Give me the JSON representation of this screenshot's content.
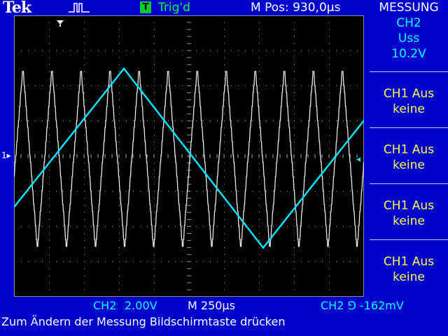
{
  "header": {
    "logo": "Tek",
    "acquisition_icon": "acquisition-pulse-icon",
    "trigger_badge": "T",
    "trigger_status": "Trig'd",
    "m_pos": "M Pos: 930,0µs",
    "menu_title": "MESSUNG"
  },
  "measure_menu": {
    "items": [
      {
        "line1": "CH2",
        "line2": "Uss",
        "line3": "10.2V"
      },
      {
        "line1": "CH1 Aus",
        "line2": "keine"
      },
      {
        "line1": "CH1 Aus",
        "line2": "keine"
      },
      {
        "line1": "CH1 Aus",
        "line2": "keine"
      },
      {
        "line1": "CH1 Aus",
        "line2": "keine"
      }
    ]
  },
  "status_bar": {
    "channel": "CH2",
    "volts_div": "2.00V",
    "timebase": "M 250µs",
    "trigger": "CH2 ⅁ -162mV"
  },
  "hint": "Zum Ändern der Messung Bildschirmtaste drücken",
  "colors": {
    "ch1": "#e6e6e6",
    "ch2": "#00e5ff",
    "background": "#0000cc"
  },
  "markers": {
    "ch1_ground": "1▸",
    "ch2_ground": "◂"
  }
}
